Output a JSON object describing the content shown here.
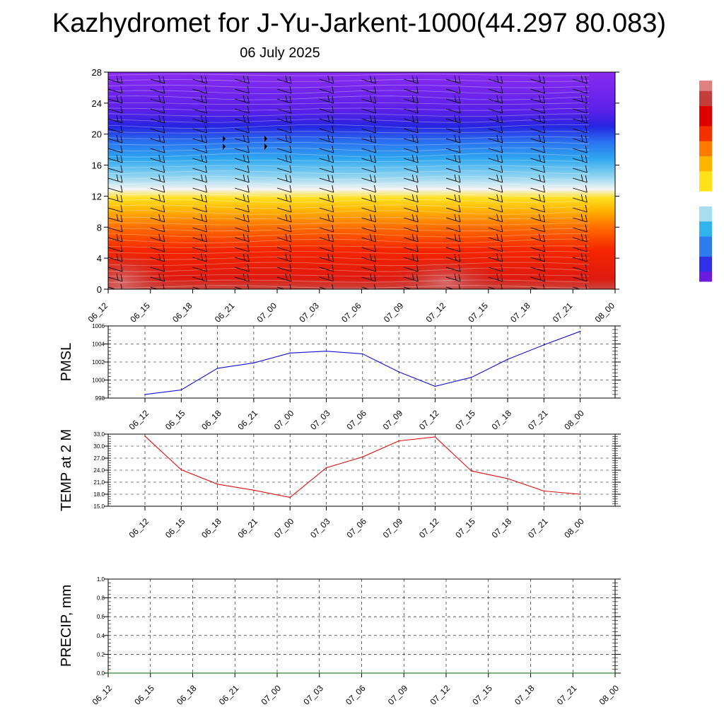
{
  "header": {
    "title": "Kazhydromet for J-Yu-Jarkent-1000(44.297 80.083)",
    "subtitle": "06 July 2025"
  },
  "chart_data": [
    {
      "type": "heatmap",
      "name": "vertical-profile",
      "x_ticks": [
        "06_12",
        "06_15",
        "06_18",
        "06_21",
        "07_00",
        "07_03",
        "07_06",
        "07_09",
        "07_12",
        "07_15",
        "07_18",
        "07_21",
        "08_00"
      ],
      "y_ticks": [
        0,
        4,
        8,
        12,
        16,
        20,
        24,
        28
      ],
      "ylim": [
        0,
        28
      ],
      "overlay": "wind barbs",
      "colorbar_colors": [
        "#6a1be0",
        "#3030e8",
        "#2f7cf0",
        "#31b3ee",
        "#a8dcf0",
        "#ffffff",
        "#ffe11a",
        "#ffb400",
        "#ff7a00",
        "#f53000",
        "#df0000",
        "#c43c3c",
        "#e08080"
      ]
    },
    {
      "type": "line",
      "name": "pmsl",
      "ylabel": "PMSL",
      "categories": [
        "06_12",
        "06_15",
        "06_18",
        "06_21",
        "07_00",
        "07_03",
        "07_06",
        "07_09",
        "07_12",
        "07_15",
        "07_18",
        "07_21",
        "08_00"
      ],
      "y_ticks": [
        "998",
        "1000",
        "1002",
        "1004",
        "1006"
      ],
      "ylim": [
        998,
        1006
      ],
      "color": "#1010d8",
      "values": [
        998.4,
        998.9,
        1001.3,
        1001.9,
        1003.0,
        1003.2,
        1002.9,
        1000.9,
        999.3,
        1000.3,
        1002.3,
        1003.9,
        1005.4
      ]
    },
    {
      "type": "line",
      "name": "temp2m",
      "ylabel": "TEMP at 2 M",
      "categories": [
        "06_12",
        "06_15",
        "06_18",
        "06_21",
        "07_00",
        "07_03",
        "07_06",
        "07_09",
        "07_12",
        "07_15",
        "07_18",
        "07_21",
        "08_00"
      ],
      "y_ticks": [
        "15.0",
        "18.0",
        "21.0",
        "24.0",
        "27.0",
        "30.0",
        "33.0"
      ],
      "ylim": [
        15,
        33
      ],
      "color": "#e01010",
      "values": [
        32.5,
        24.1,
        20.5,
        19.0,
        17.2,
        24.6,
        27.3,
        31.3,
        32.3,
        23.8,
        21.9,
        18.8,
        18.0
      ]
    },
    {
      "type": "line",
      "name": "precip",
      "ylabel": "PRECIP, mm",
      "categories": [
        "06_12",
        "06_15",
        "06_18",
        "06_21",
        "07_00",
        "07_03",
        "07_06",
        "07_09",
        "07_12",
        "07_15",
        "07_18",
        "07_21",
        "08_00"
      ],
      "y_ticks": [
        "0.0",
        "0.2",
        "0.4",
        "0.6",
        "0.8",
        "1.0"
      ],
      "ylim": [
        0,
        1
      ],
      "color": "#006400",
      "values": [
        0,
        0,
        0,
        0,
        0,
        0,
        0,
        0,
        0,
        0,
        0,
        0,
        0
      ]
    }
  ]
}
